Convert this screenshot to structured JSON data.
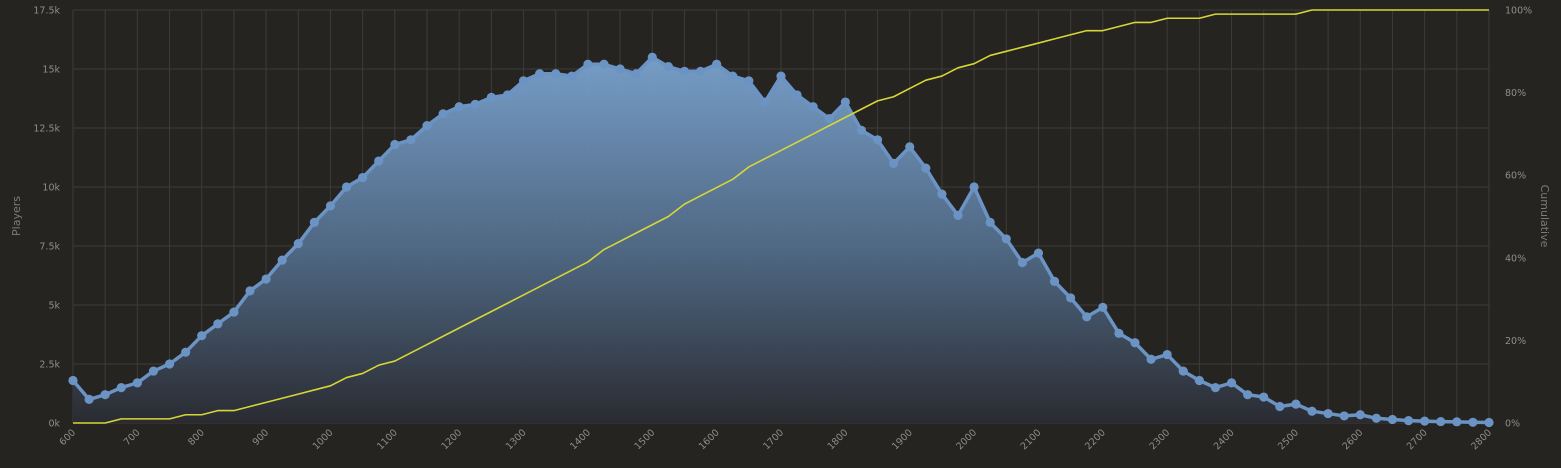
{
  "chart_data": {
    "type": "area",
    "xlabel": "",
    "ylabel": "Players",
    "y2label": "Cumulative",
    "xlim": [
      600,
      2800
    ],
    "ylim": [
      0,
      17500
    ],
    "y2lim": [
      0,
      100
    ],
    "grid": true,
    "x_ticks": [
      "600",
      "700",
      "800",
      "900",
      "1000",
      "1100",
      "1200",
      "1300",
      "1400",
      "1500",
      "1600",
      "1700",
      "1800",
      "1900",
      "2000",
      "2100",
      "2200",
      "2300",
      "2400",
      "2500",
      "2600",
      "2700",
      "2800"
    ],
    "y_ticks": [
      "0k",
      "2.5k",
      "5k",
      "7.5k",
      "10k",
      "12.5k",
      "15k",
      "17.5k"
    ],
    "y2_ticks": [
      "0%",
      "20%",
      "40%",
      "60%",
      "80%",
      "100%"
    ],
    "colors": {
      "players": "#6b93c4",
      "cumulative": "#d6d637",
      "background": "#262421",
      "grid": "#3e3c39"
    },
    "series": [
      {
        "name": "Players",
        "x": [
          600,
          625,
          650,
          675,
          700,
          725,
          750,
          775,
          800,
          825,
          850,
          875,
          900,
          925,
          950,
          975,
          1000,
          1025,
          1050,
          1075,
          1100,
          1125,
          1150,
          1175,
          1200,
          1225,
          1250,
          1275,
          1300,
          1325,
          1350,
          1375,
          1400,
          1425,
          1450,
          1475,
          1500,
          1525,
          1550,
          1575,
          1600,
          1625,
          1650,
          1675,
          1700,
          1725,
          1750,
          1775,
          1800,
          1825,
          1850,
          1875,
          1900,
          1925,
          1950,
          1975,
          2000,
          2025,
          2050,
          2075,
          2100,
          2125,
          2150,
          2175,
          2200,
          2225,
          2250,
          2275,
          2300,
          2325,
          2350,
          2375,
          2400,
          2425,
          2450,
          2475,
          2500,
          2525,
          2550,
          2575,
          2600,
          2625,
          2650,
          2675,
          2700,
          2725,
          2750,
          2775,
          2800
        ],
        "values": [
          1800,
          1000,
          1200,
          1500,
          1700,
          2200,
          2500,
          3000,
          3700,
          4200,
          4700,
          5600,
          6100,
          6900,
          7600,
          8500,
          9200,
          10000,
          10400,
          11100,
          11800,
          12000,
          12600,
          13100,
          13400,
          13500,
          13800,
          13900,
          14500,
          14800,
          14800,
          14700,
          15200,
          15200,
          15000,
          14800,
          15500,
          15100,
          14900,
          14900,
          15200,
          14700,
          14500,
          13600,
          14700,
          13900,
          13400,
          12900,
          13600,
          12400,
          12000,
          11000,
          11700,
          10800,
          9700,
          8800,
          10000,
          8500,
          7800,
          6800,
          7200,
          6000,
          5300,
          4500,
          4900,
          3800,
          3400,
          2700,
          2900,
          2200,
          1800,
          1500,
          1700,
          1200,
          1100,
          700,
          800,
          500,
          400,
          300,
          350,
          200,
          150,
          100,
          80,
          60,
          50,
          30,
          20
        ]
      },
      {
        "name": "Cumulative",
        "x": [
          600,
          625,
          650,
          675,
          700,
          725,
          750,
          775,
          800,
          825,
          850,
          875,
          900,
          925,
          950,
          975,
          1000,
          1025,
          1050,
          1075,
          1100,
          1125,
          1150,
          1175,
          1200,
          1225,
          1250,
          1275,
          1300,
          1325,
          1350,
          1375,
          1400,
          1425,
          1450,
          1475,
          1500,
          1525,
          1550,
          1575,
          1600,
          1625,
          1650,
          1675,
          1700,
          1725,
          1750,
          1775,
          1800,
          1825,
          1850,
          1875,
          1900,
          1925,
          1950,
          1975,
          2000,
          2025,
          2050,
          2075,
          2100,
          2125,
          2150,
          2175,
          2200,
          2225,
          2250,
          2275,
          2300,
          2325,
          2350,
          2375,
          2400,
          2425,
          2450,
          2475,
          2500,
          2525,
          2550,
          2575,
          2600,
          2625,
          2650,
          2675,
          2700,
          2725,
          2750,
          2775,
          2800
        ],
        "values": [
          0,
          0,
          0,
          1,
          1,
          1,
          1,
          2,
          2,
          3,
          3,
          4,
          5,
          6,
          7,
          8,
          9,
          11,
          12,
          14,
          15,
          17,
          19,
          21,
          23,
          25,
          27,
          29,
          31,
          33,
          35,
          37,
          39,
          42,
          44,
          46,
          48,
          50,
          53,
          55,
          57,
          59,
          62,
          64,
          66,
          68,
          70,
          72,
          74,
          76,
          78,
          79,
          81,
          83,
          84,
          86,
          87,
          89,
          90,
          91,
          92,
          93,
          94,
          95,
          95,
          96,
          97,
          97,
          98,
          98,
          98,
          99,
          99,
          99,
          99,
          99,
          99,
          100,
          100,
          100,
          100,
          100,
          100,
          100,
          100,
          100,
          100,
          100,
          100
        ]
      }
    ]
  }
}
